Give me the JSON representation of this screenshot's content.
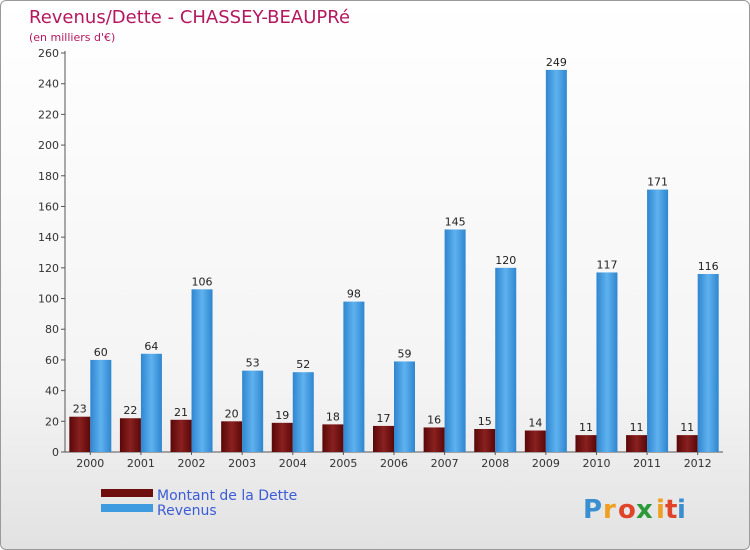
{
  "header": {
    "title": "Revenus/Dette - CHASSEY-BEAUPRé",
    "subtitle": "(en milliers d'€)"
  },
  "colors": {
    "dette": "#6e0e0e",
    "revenus": "#3f9be0",
    "title": "#b5175f",
    "legend_text": "#3b5cd6"
  },
  "legend": {
    "items": [
      {
        "label": "Montant de la Dette",
        "color": "#6e0e0e"
      },
      {
        "label": "Revenus",
        "color": "#3f9be0"
      }
    ]
  },
  "logo": {
    "letters": [
      "P",
      "r",
      "o",
      "x",
      "i",
      "t",
      "i"
    ],
    "colors": [
      "#3a8fd0",
      "#f0a020",
      "#e0452a",
      "#2d9a3a",
      "#f0a020",
      "#e0452a",
      "#3a8fd0"
    ]
  },
  "chart_data": {
    "type": "bar",
    "title": "Revenus/Dette - CHASSEY-BEAUPRé",
    "ylabel": "(en milliers d'€)",
    "xlabel": "",
    "categories": [
      "2000",
      "2001",
      "2002",
      "2003",
      "2004",
      "2005",
      "2006",
      "2007",
      "2008",
      "2009",
      "2010",
      "2011",
      "2012"
    ],
    "series": [
      {
        "name": "Montant de la Dette",
        "values": [
          23,
          22,
          21,
          20,
          19,
          18,
          17,
          16,
          15,
          14,
          11,
          11,
          11
        ]
      },
      {
        "name": "Revenus",
        "values": [
          60,
          64,
          106,
          53,
          52,
          98,
          59,
          145,
          120,
          249,
          117,
          171,
          116
        ]
      }
    ],
    "ylim": [
      0,
      260
    ],
    "yticks": [
      0,
      20,
      40,
      60,
      80,
      100,
      120,
      140,
      160,
      180,
      200,
      220,
      240,
      260
    ],
    "grid": false,
    "legend_position": "bottom-left"
  }
}
